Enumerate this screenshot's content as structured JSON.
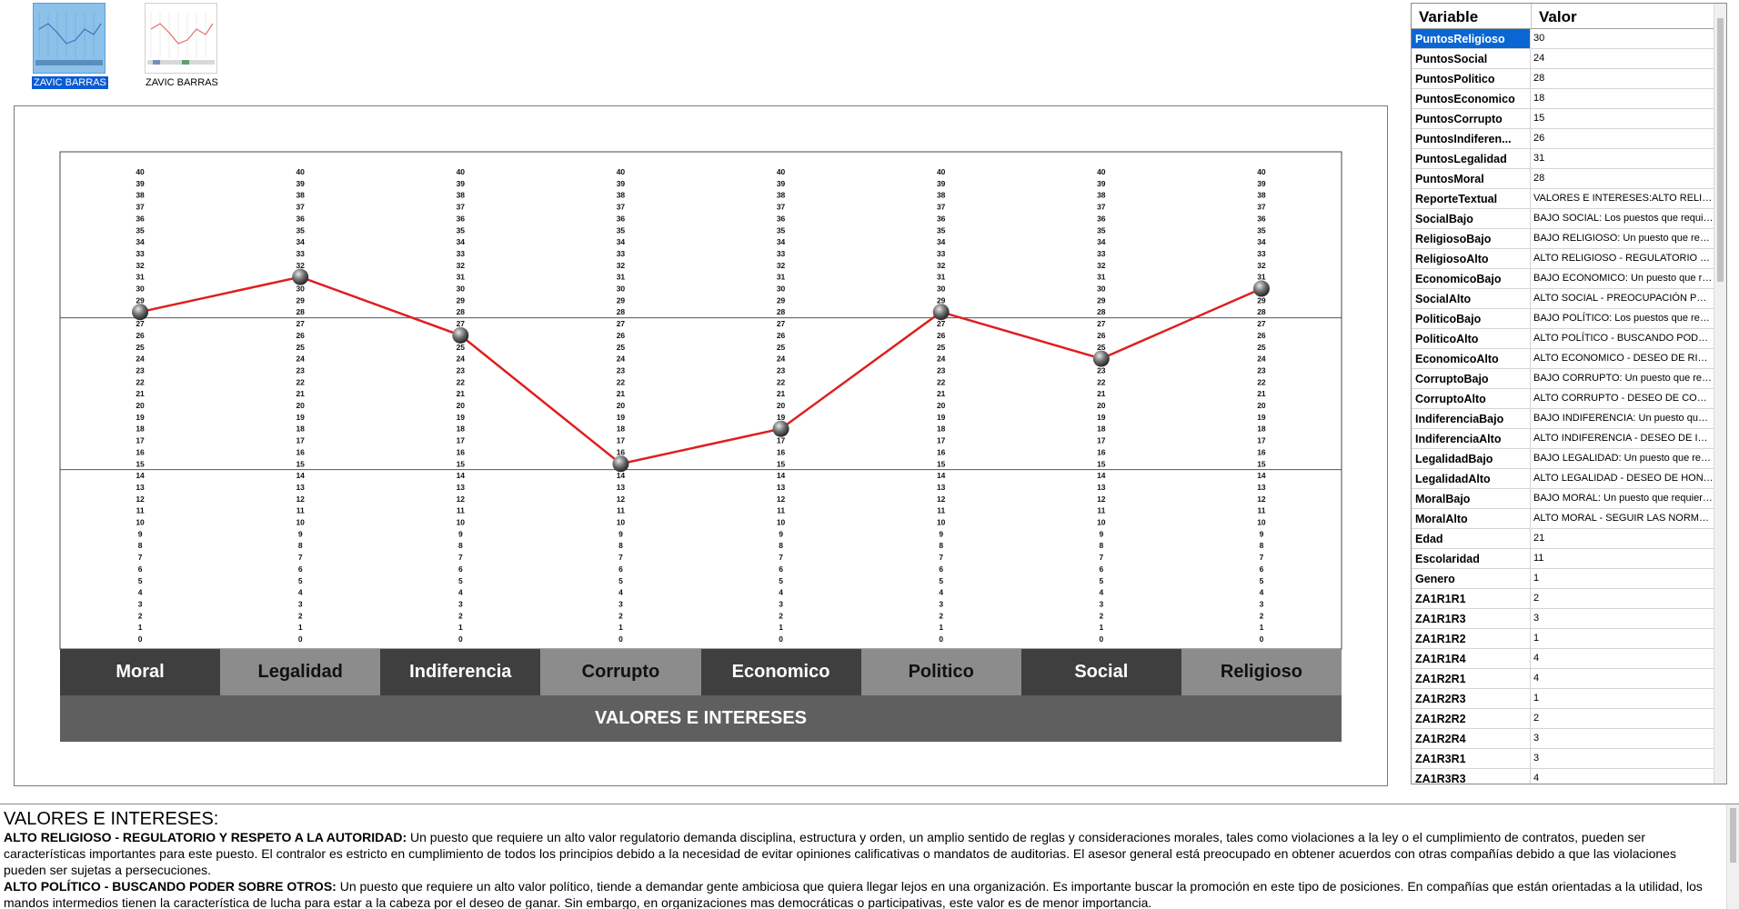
{
  "thumbnails": [
    {
      "label": "ZAVIC BARRAS",
      "selected": true,
      "icon": "line-chart-thumbnail-icon"
    },
    {
      "label": "ZAVIC BARRAS",
      "selected": false,
      "icon": "line-chart-thumbnail-icon"
    }
  ],
  "chart_data": {
    "type": "line",
    "title": "VALORES E INTERESES",
    "categories": [
      "Moral",
      "Legalidad",
      "Indiferencia",
      "Corrupto",
      "Economico",
      "Politico",
      "Social",
      "Religioso"
    ],
    "values": [
      28,
      31,
      26,
      15,
      18,
      28,
      24,
      30
    ],
    "ylim": [
      0,
      40
    ],
    "gridlines": [
      14,
      27
    ],
    "line_color": "#e01e1e",
    "marker_color": "#707070",
    "category_bar_colors": [
      "#3f3f3f",
      "#8c8c8c"
    ]
  },
  "grid": {
    "headers": {
      "variable": "Variable",
      "valor": "Valor"
    },
    "rows": [
      {
        "variable": "PuntosReligioso",
        "valor": "30",
        "selected": true
      },
      {
        "variable": "PuntosSocial",
        "valor": "24"
      },
      {
        "variable": "PuntosPolitico",
        "valor": "28"
      },
      {
        "variable": "PuntosEconomico",
        "valor": "18"
      },
      {
        "variable": "PuntosCorrupto",
        "valor": "15"
      },
      {
        "variable": "PuntosIndiferen...",
        "valor": "26"
      },
      {
        "variable": "PuntosLegalidad",
        "valor": "31"
      },
      {
        "variable": "PuntosMoral",
        "valor": "28"
      },
      {
        "variable": "ReporteTextual",
        "valor": "VALORES E INTERESES:ALTO RELIGI..."
      },
      {
        "variable": "SocialBajo",
        "valor": "BAJO SOCIAL: Los puestos que requiere..."
      },
      {
        "variable": "ReligiosoBajo",
        "valor": "BAJO RELIGIOSO: Un puesto que requi..."
      },
      {
        "variable": "ReligiosoAlto",
        "valor": "ALTO RELIGIOSO - REGULATORIO Y ..."
      },
      {
        "variable": "EconomicoBajo",
        "valor": "BAJO ECONOMICO: Un puesto que req..."
      },
      {
        "variable": "SocialAlto",
        "valor": "ALTO SOCIAL - PREOCUPACIÓN POR ..."
      },
      {
        "variable": "PoliticoBajo",
        "valor": "BAJO POLÍTICO: Los puestos que requi..."
      },
      {
        "variable": "PoliticoAlto",
        "valor": "ALTO POLÍTICO - BUSCANDO PODER ..."
      },
      {
        "variable": "EconomicoAlto",
        "valor": "ALTO ECONOMICO - DESEO DE RIQU..."
      },
      {
        "variable": "CorruptoBajo",
        "valor": "BAJO CORRUPTO: Un puesto que requi..."
      },
      {
        "variable": "CorruptoAlto",
        "valor": "ALTO CORRUPTO - DESEO DE COHE..."
      },
      {
        "variable": "IndiferenciaBajo",
        "valor": "BAJO INDIFERENCIA: Un puesto que re..."
      },
      {
        "variable": "IndiferenciaAlto",
        "valor": "ALTO INDIFERENCIA - DESEO DE INC..."
      },
      {
        "variable": "LegalidadBajo",
        "valor": "BAJO LEGALIDAD: Un puesto que requi..."
      },
      {
        "variable": "LegalidadAlto",
        "valor": "ALTO LEGALIDAD - DESEO DE HONE..."
      },
      {
        "variable": "MoralBajo",
        "valor": "BAJO MORAL: Un puesto que requiere ..."
      },
      {
        "variable": "MoralAlto",
        "valor": "ALTO MORAL - SEGUIR LAS NORMAS..."
      },
      {
        "variable": "Edad",
        "valor": "21"
      },
      {
        "variable": "Escolaridad",
        "valor": "11"
      },
      {
        "variable": "Genero",
        "valor": "1"
      },
      {
        "variable": "ZA1R1R1",
        "valor": "2"
      },
      {
        "variable": "ZA1R1R3",
        "valor": "3"
      },
      {
        "variable": "ZA1R1R2",
        "valor": "1"
      },
      {
        "variable": "ZA1R1R4",
        "valor": "4"
      },
      {
        "variable": "ZA1R2R1",
        "valor": "4"
      },
      {
        "variable": "ZA1R2R3",
        "valor": "1"
      },
      {
        "variable": "ZA1R2R2",
        "valor": "2"
      },
      {
        "variable": "ZA1R2R4",
        "valor": "3"
      },
      {
        "variable": "ZA1R3R1",
        "valor": "3"
      },
      {
        "variable": "ZA1R3R3",
        "valor": "4"
      }
    ]
  },
  "report": {
    "title": "VALORES E INTERESES:",
    "paragraphs": [
      {
        "heading": "ALTO RELIGIOSO - REGULATORIO Y RESPETO A LA AUTORIDAD:",
        "text": " Un puesto que requiere un alto valor regulatorio demanda disciplina, estructura y orden, un amplio sentido de reglas y consideraciones morales, tales como violaciones a la ley o el cumplimiento de contratos, pueden ser características importantes para este puesto. El contralor es estricto en cumplimiento de todos los principios debido a la necesidad de evitar opiniones calificativas o mandatos de auditorias. El asesor general está preocupado en obtener acuerdos con otras compañías debido a que las violaciones pueden ser sujetas a persecuciones."
      },
      {
        "heading": "ALTO POLÍTICO - BUSCANDO PODER SOBRE OTROS:",
        "text": " Un puesto que requiere un alto valor político, tiende a demandar gente ambiciosa que quiera llegar lejos en una organización. Es importante buscar la promoción en este tipo de posiciones. En compañías que están orientadas a la utilidad, los mandos intermedios tienen la característica de lucha para estar a la cabeza por el deseo de ganar. Sin embargo, en organizaciones mas democráticas o participativas, este valor es de menor importancia."
      }
    ]
  }
}
